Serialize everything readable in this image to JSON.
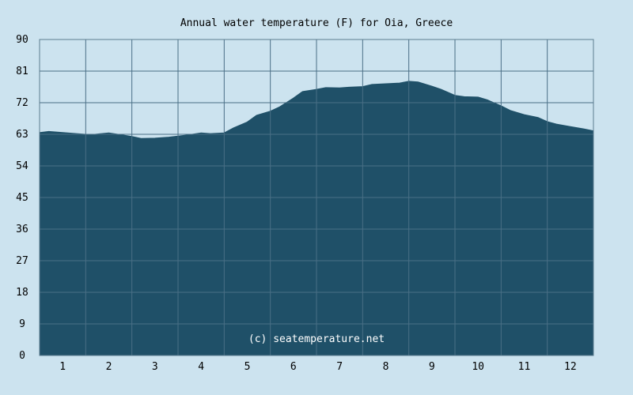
{
  "chart_data": {
    "type": "area",
    "title": "Annual water temperature (F) for Oia, Greece",
    "xlabel": "",
    "ylabel": "",
    "ylim": [
      0,
      90
    ],
    "xlim": [
      0.5,
      12.5
    ],
    "y_ticks": [
      "0",
      "9",
      "18",
      "27",
      "36",
      "45",
      "54",
      "63",
      "72",
      "81",
      "90"
    ],
    "x_ticks": [
      "1",
      "2",
      "3",
      "4",
      "5",
      "6",
      "7",
      "8",
      "9",
      "10",
      "11",
      "12"
    ],
    "grid": true,
    "series": [
      {
        "x": [
          0.5,
          0.7,
          1.0,
          1.3,
          1.5,
          1.7,
          2.0,
          2.3,
          2.5,
          2.7,
          3.0,
          3.3,
          3.5,
          3.7,
          4.0,
          4.2,
          4.5,
          4.7,
          5.0,
          5.2,
          5.5,
          5.7,
          6.0,
          6.2,
          6.5,
          6.7,
          7.0,
          7.2,
          7.5,
          7.7,
          8.0,
          8.3,
          8.5,
          8.7,
          9.0,
          9.2,
          9.5,
          9.7,
          10.0,
          10.2,
          10.5,
          10.7,
          11.0,
          11.3,
          11.5,
          11.7,
          12.0,
          12.3,
          12.5
        ],
        "values": [
          63.5,
          63.8,
          63.5,
          63.2,
          63.0,
          63.0,
          63.4,
          62.8,
          62.4,
          61.8,
          61.9,
          62.2,
          62.5,
          62.8,
          63.4,
          63.2,
          63.4,
          64.8,
          66.5,
          68.4,
          69.6,
          70.8,
          73.3,
          75.2,
          75.8,
          76.3,
          76.2,
          76.4,
          76.6,
          77.2,
          77.4,
          77.6,
          78.1,
          77.9,
          76.7,
          75.8,
          74.1,
          73.7,
          73.6,
          72.8,
          71.1,
          69.8,
          68.6,
          67.8,
          66.6,
          65.9,
          65.2,
          64.5,
          64.0
        ]
      }
    ],
    "colors": {
      "background": "#cce3ef",
      "fill": "#1f5068",
      "grid": "#4a6f86",
      "axis": "#5c7c8f"
    },
    "annotation": "(c) seatemperature.net"
  }
}
